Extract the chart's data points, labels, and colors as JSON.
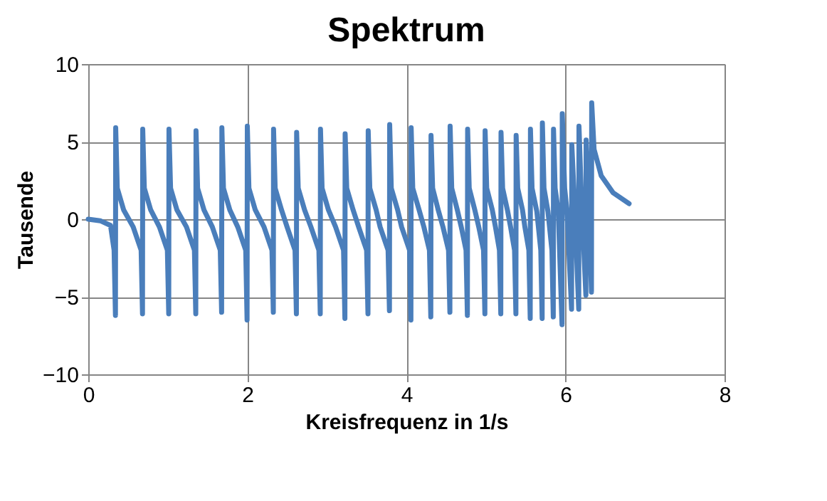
{
  "chart_data": {
    "type": "line",
    "title": "Spektrum",
    "xlabel": "Kreisfrequenz in 1/s",
    "ylabel": "Tausende",
    "xlim": [
      0,
      8
    ],
    "xticks": [
      0,
      2,
      4,
      6,
      8
    ],
    "ylim": [
      -10,
      10
    ],
    "yticks": [
      -10,
      -5,
      0,
      5,
      10
    ],
    "grid": true,
    "legend": false,
    "marker": "none",
    "line_style": "solid",
    "series": [
      {
        "color": "#4a7ebb",
        "x": [
          0,
          0.15,
          0.28,
          0.325,
          0.342,
          0.345,
          0.365,
          0.445,
          0.565,
          0.665,
          0.682,
          0.685,
          0.705,
          0.785,
          0.895,
          0.995,
          1.012,
          1.015,
          1.035,
          1.115,
          1.235,
          1.335,
          1.352,
          1.355,
          1.375,
          1.455,
          1.56,
          1.66,
          1.677,
          1.68,
          1.7,
          1.78,
          1.88,
          1.98,
          1.997,
          2.0,
          2.02,
          2.1,
          2.21,
          2.31,
          2.327,
          2.33,
          2.35,
          2.43,
          2.5,
          2.6,
          2.617,
          2.62,
          2.64,
          2.72,
          2.8,
          2.9,
          2.917,
          2.92,
          2.94,
          3.02,
          3.11,
          3.21,
          3.227,
          3.23,
          3.25,
          3.33,
          3.4,
          3.5,
          3.517,
          3.52,
          3.54,
          3.62,
          3.67,
          3.77,
          3.787,
          3.79,
          3.81,
          3.89,
          3.94,
          4.04,
          4.057,
          4.06,
          4.08,
          4.16,
          4.22,
          4.29,
          4.307,
          4.31,
          4.33,
          4.4,
          4.46,
          4.53,
          4.547,
          4.55,
          4.57,
          4.64,
          4.69,
          4.75,
          4.767,
          4.77,
          4.79,
          4.86,
          4.91,
          4.97,
          4.987,
          4.99,
          5.01,
          5.08,
          5.12,
          5.17,
          5.187,
          5.19,
          5.21,
          5.27,
          5.31,
          5.36,
          5.377,
          5.38,
          5.4,
          5.46,
          5.49,
          5.54,
          5.557,
          5.56,
          5.58,
          5.64,
          5.69,
          5.707,
          5.71,
          5.73,
          5.78,
          5.83,
          5.847,
          5.85,
          5.87,
          5.91,
          5.957,
          5.96,
          5.99,
          6.02,
          6.077,
          6.08,
          6.11,
          6.167,
          6.17,
          6.2,
          6.257,
          6.26,
          6.29,
          6.327,
          6.33,
          6.36,
          6.45,
          6.6,
          6.8
        ],
        "values": [
          0,
          -0.1,
          -0.4,
          -2,
          -6.2,
          5.9,
          2,
          0.6,
          -0.5,
          -2,
          -6.1,
          5.8,
          2,
          0.6,
          -0.5,
          -2,
          -6.1,
          5.8,
          2,
          0.6,
          -0.5,
          -2,
          -6.1,
          5.7,
          2,
          0.6,
          -0.5,
          -2,
          -6.0,
          5.9,
          2,
          0.6,
          -0.5,
          -2,
          -6.5,
          6.0,
          2,
          0.6,
          -0.5,
          -2,
          -6.0,
          5.8,
          2,
          0.6,
          -0.5,
          -2,
          -6.1,
          5.6,
          2,
          0.6,
          -0.5,
          -2,
          -6.1,
          5.8,
          2,
          0.6,
          -0.5,
          -2,
          -6.4,
          5.5,
          2,
          0.6,
          -0.5,
          -2,
          -6.1,
          5.7,
          2,
          0.6,
          -0.5,
          -2,
          -5.9,
          6.1,
          2,
          0.6,
          -0.5,
          -2,
          -6.5,
          5.9,
          2,
          0.6,
          -0.5,
          -2,
          -6.3,
          5.4,
          2,
          0.6,
          -0.5,
          -2,
          -6.0,
          6.0,
          2,
          0.6,
          -0.5,
          -2,
          -6.2,
          5.8,
          2,
          0.6,
          -0.5,
          -2,
          -6.1,
          5.7,
          2,
          0.6,
          -0.5,
          -2,
          -6.1,
          5.6,
          2,
          0.6,
          -0.5,
          -2,
          -6.1,
          5.4,
          2,
          0.6,
          -0.5,
          -2,
          -6.4,
          5.8,
          2,
          0.5,
          -2,
          -6.4,
          6.2,
          2,
          0.5,
          -2,
          -6.3,
          5.8,
          2,
          0.5,
          -6.8,
          6.8,
          2,
          0.5,
          -5.8,
          4.8,
          1.5,
          -5.8,
          6.0,
          1.5,
          -4.9,
          5.1,
          1.5,
          -4.7,
          7.5,
          4.5,
          2.8,
          1.7,
          1.0
        ]
      }
    ]
  }
}
